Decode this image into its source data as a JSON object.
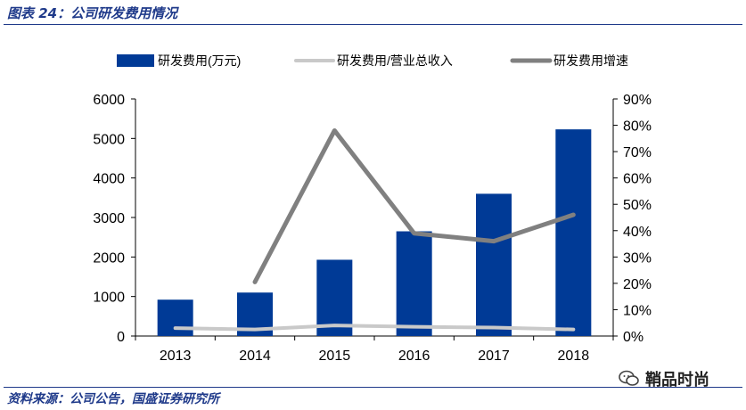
{
  "figure_title": "图表 24：公司研发费用情况",
  "source_note": "资料来源：公司公告，国盛证券研究所",
  "watermark_text": "鞘品时尚",
  "chart_data": {
    "type": "bar",
    "title": "",
    "xlabel": "",
    "ylabel": "",
    "categories": [
      "2013",
      "2014",
      "2015",
      "2016",
      "2017",
      "2018"
    ],
    "y_left": {
      "range": [
        0,
        6000
      ],
      "ticks": [
        "0",
        "1000",
        "2000",
        "3000",
        "4000",
        "5000",
        "6000"
      ]
    },
    "y_right": {
      "range": [
        0,
        0.9
      ],
      "ticks": [
        "0%",
        "10%",
        "20%",
        "30%",
        "40%",
        "50%",
        "60%",
        "70%",
        "80%",
        "90%"
      ]
    },
    "grid": false,
    "legend_position": "top",
    "series": [
      {
        "name": "研发费用(万元)",
        "type": "bar",
        "axis": "left",
        "color": "#003a96",
        "values": [
          920,
          1100,
          1930,
          2650,
          3600,
          5230
        ]
      },
      {
        "name": "研发费用/营业总收入",
        "type": "line",
        "axis": "right",
        "color": "#c9c9c9",
        "values": [
          0.03,
          0.025,
          0.04,
          0.035,
          0.032,
          0.025
        ]
      },
      {
        "name": "研发费用增速",
        "type": "line",
        "axis": "right",
        "color": "#808080",
        "values": [
          null,
          0.205,
          0.78,
          0.39,
          0.36,
          0.46
        ]
      }
    ]
  }
}
